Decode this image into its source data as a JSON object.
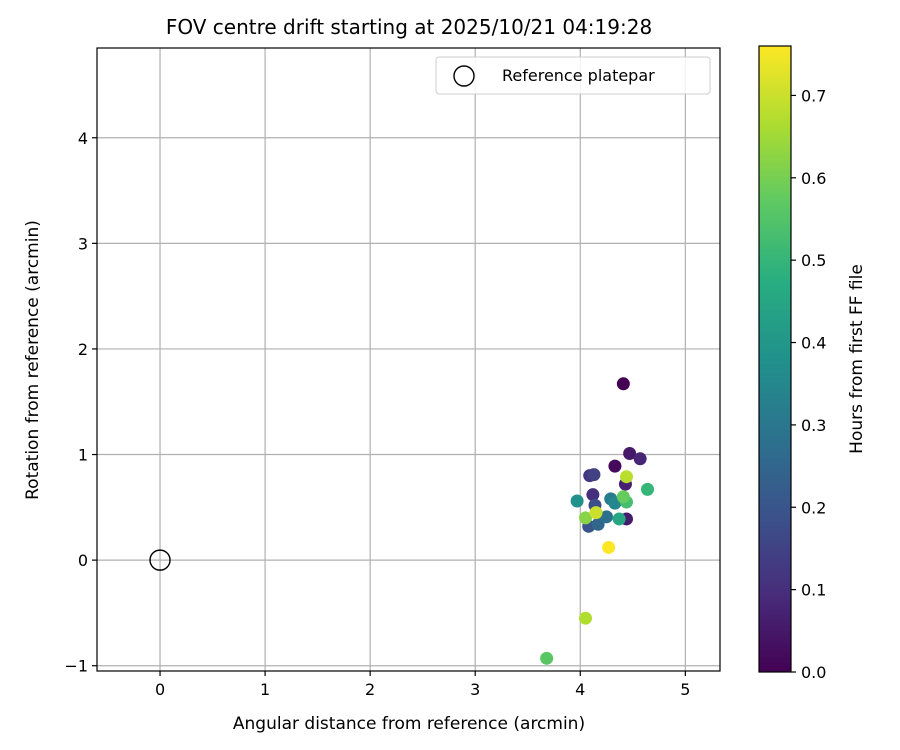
{
  "chart_data": {
    "type": "scatter",
    "title": "FOV centre drift starting at 2025/10/21 04:19:28",
    "xlabel": "Angular distance from reference (arcmin)",
    "ylabel": "Rotation from reference (arcmin)",
    "xlim": [
      -0.6,
      5.33
    ],
    "ylim": [
      -1.05,
      4.85
    ],
    "xticks": [
      0,
      1,
      2,
      3,
      4,
      5
    ],
    "yticks": [
      -1,
      0,
      1,
      2,
      3,
      4
    ],
    "xtick_labels": [
      "0",
      "1",
      "2",
      "3",
      "4",
      "5"
    ],
    "ytick_labels": [
      "−1",
      "0",
      "1",
      "2",
      "3",
      "4"
    ],
    "grid": true,
    "legend": {
      "position": "top-right",
      "label": "Reference platepar"
    },
    "reference_point": {
      "x": 0,
      "y": 0
    },
    "colorbar": {
      "label": "Hours from first FF file",
      "range": [
        0.0,
        0.76
      ],
      "colormap": "viridis",
      "ticks": [
        0.0,
        0.1,
        0.2,
        0.3,
        0.4,
        0.5,
        0.6,
        0.7
      ],
      "tick_labels": [
        "0.0",
        "0.1",
        "0.2",
        "0.3",
        "0.4",
        "0.5",
        "0.6",
        "0.7"
      ]
    },
    "points": [
      {
        "x": 4.41,
        "y": 1.67,
        "c": 0.0
      },
      {
        "x": 4.33,
        "y": 0.89,
        "c": 0.02
      },
      {
        "x": 4.47,
        "y": 1.01,
        "c": 0.05
      },
      {
        "x": 4.57,
        "y": 0.96,
        "c": 0.08
      },
      {
        "x": 4.43,
        "y": 0.72,
        "c": 0.07
      },
      {
        "x": 4.44,
        "y": 0.39,
        "c": 0.06
      },
      {
        "x": 4.12,
        "y": 0.62,
        "c": 0.1
      },
      {
        "x": 4.09,
        "y": 0.8,
        "c": 0.12
      },
      {
        "x": 4.13,
        "y": 0.81,
        "c": 0.15
      },
      {
        "x": 4.14,
        "y": 0.52,
        "c": 0.18
      },
      {
        "x": 4.08,
        "y": 0.32,
        "c": 0.2
      },
      {
        "x": 4.17,
        "y": 0.34,
        "c": 0.25
      },
      {
        "x": 4.25,
        "y": 0.41,
        "c": 0.28
      },
      {
        "x": 4.29,
        "y": 0.58,
        "c": 0.32
      },
      {
        "x": 4.33,
        "y": 0.54,
        "c": 0.35
      },
      {
        "x": 3.97,
        "y": 0.56,
        "c": 0.38
      },
      {
        "x": 4.37,
        "y": 0.39,
        "c": 0.45
      },
      {
        "x": 4.64,
        "y": 0.67,
        "c": 0.5
      },
      {
        "x": 4.44,
        "y": 0.55,
        "c": 0.53
      },
      {
        "x": 4.41,
        "y": 0.6,
        "c": 0.58
      },
      {
        "x": 4.05,
        "y": 0.4,
        "c": 0.62
      },
      {
        "x": 3.68,
        "y": -0.93,
        "c": 0.56
      },
      {
        "x": 4.15,
        "y": 0.45,
        "c": 0.7
      },
      {
        "x": 4.44,
        "y": 0.79,
        "c": 0.68
      },
      {
        "x": 4.05,
        "y": -0.55,
        "c": 0.67
      },
      {
        "x": 4.27,
        "y": 0.12,
        "c": 0.76
      }
    ]
  }
}
